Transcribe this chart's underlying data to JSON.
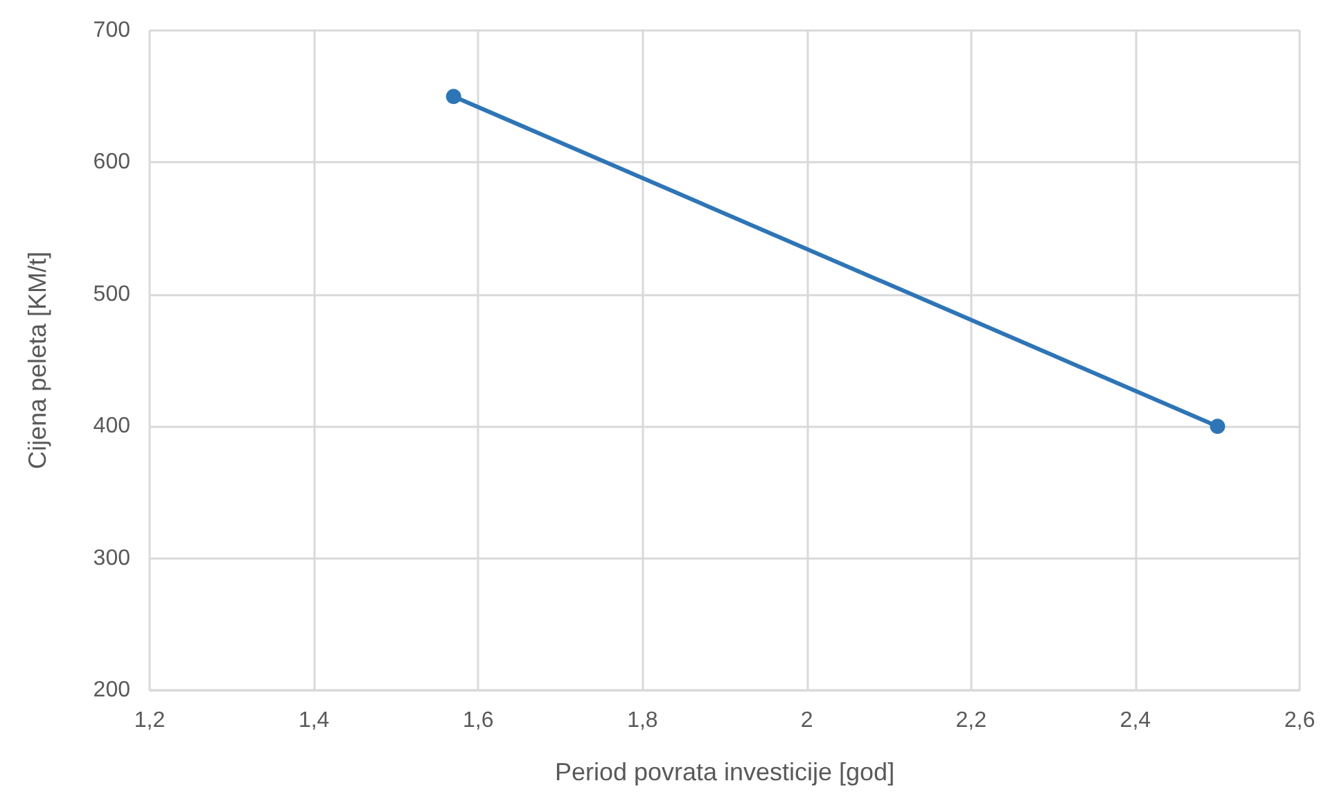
{
  "chart_data": {
    "type": "line",
    "xlabel": "Period povrata investicije [god]",
    "ylabel": "Cijena peleta [KM/t]",
    "x": [
      1.57,
      2.5
    ],
    "series": [
      {
        "color": "#2e75b6",
        "values": [
          650,
          400
        ]
      }
    ],
    "xlim": [
      1.2,
      2.6
    ],
    "xticks": [
      {
        "value": 1.2,
        "label": "1,2"
      },
      {
        "value": 1.4,
        "label": "1,4"
      },
      {
        "value": 1.6,
        "label": "1,6"
      },
      {
        "value": 1.8,
        "label": "1,8"
      },
      2,
      {
        "value": 2.2,
        "label": "2,2"
      },
      {
        "value": 2.4,
        "label": "2,4"
      },
      {
        "value": 2.6,
        "label": "2,6"
      }
    ],
    "ylim": [
      200,
      700
    ],
    "yticks": [
      200,
      300,
      400,
      500,
      600,
      700
    ],
    "grid": true,
    "marker": "circle",
    "line_style": "solid"
  }
}
